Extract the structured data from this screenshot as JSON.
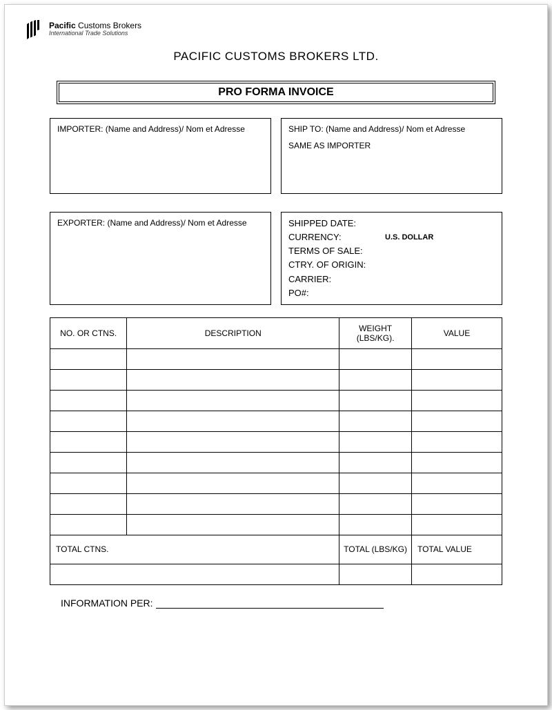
{
  "logo": {
    "brand_bold": "Pacific",
    "brand_rest": " Customs Brokers",
    "tagline": "International Trade Solutions"
  },
  "header": {
    "company_name": "PACIFIC CUSTOMS BROKERS LTD.",
    "doc_title": "PRO FORMA INVOICE"
  },
  "importer": {
    "label": "IMPORTER: (Name and Address)/ Nom et Adresse"
  },
  "ship_to": {
    "label": "SHIP TO: (Name and Address)/ Nom et Adresse",
    "value": "SAME AS IMPORTER"
  },
  "exporter": {
    "label": "EXPORTER: (Name and Address)/ Nom et Adresse"
  },
  "shipment": {
    "shipped_date_label": "SHIPPED DATE:",
    "currency_label": "CURRENCY:",
    "currency_value": "U.S. DOLLAR",
    "terms_label": "TERMS OF SALE:",
    "origin_label": "CTRY. OF ORIGIN:",
    "carrier_label": "CARRIER:",
    "po_label": "PO#:"
  },
  "table": {
    "columns": {
      "no": "NO. OR CTNS.",
      "desc": "DESCRIPTION",
      "weight": "WEIGHT (LBS/KG).",
      "value": "VALUE"
    },
    "blank_body_rows": 9,
    "totals": {
      "ctns": "TOTAL CTNS.",
      "weight": "TOTAL (LBS/KG)",
      "value": "TOTAL VALUE"
    }
  },
  "footer": {
    "info_per_label": "INFORMATION PER:"
  },
  "style": {
    "page_bg": "#ffffff",
    "border_color": "#000000",
    "shadow_color": "rgba(0,0,0,0.4)",
    "font_family": "Arial"
  }
}
